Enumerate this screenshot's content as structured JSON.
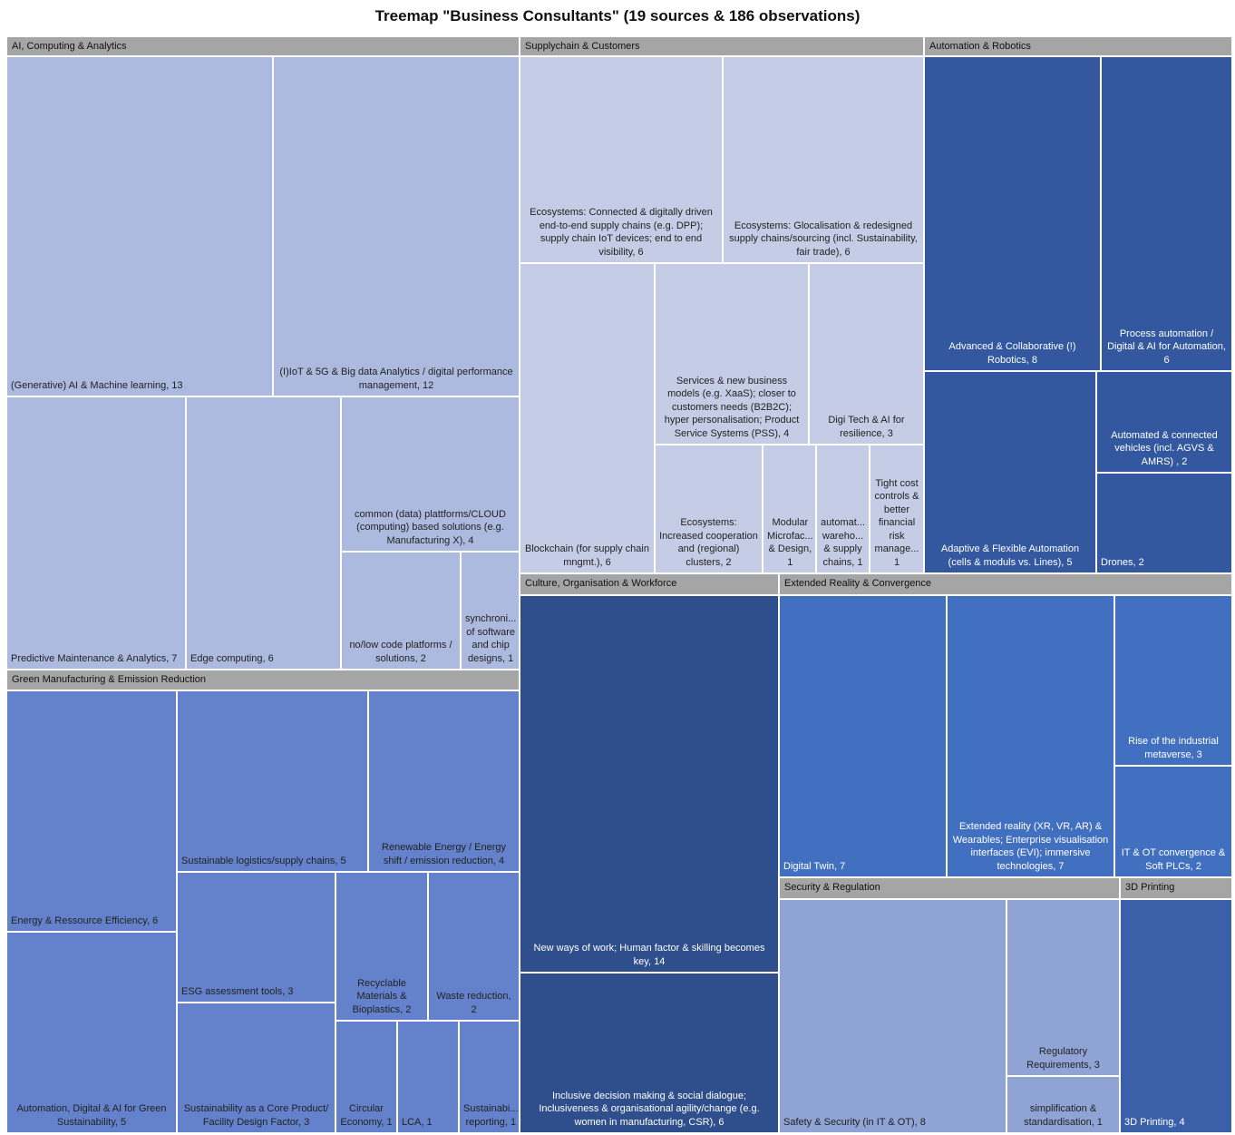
{
  "chart_data": {
    "type": "treemap",
    "title": "Treemap \"Business Consultants\" (19 sources & 186 observations)",
    "header_color": "#a5a5a5",
    "groups": [
      {
        "name": "AI, Computing & Analytics",
        "color": "#adbadf",
        "children": [
          {
            "label": "(Generative) AI & Machine learning, 13",
            "value": 13
          },
          {
            "label": "(I)IoT & 5G & Big data Analytics / digital performance management, 12",
            "value": 12
          },
          {
            "label": "Predictive Maintenance & Analytics, 7",
            "value": 7
          },
          {
            "label": "Edge computing, 6",
            "value": 6
          },
          {
            "label": "common (data) plattforms/CLOUD (computing) based solutions (e.g. Manufacturing X), 4",
            "value": 4
          },
          {
            "label": "no/low code platforms / solutions, 2",
            "value": 2
          },
          {
            "label": "synchroni... of software and chip designs, 1",
            "value": 1
          }
        ]
      },
      {
        "name": "Green Manufacturing & Emission Reduction",
        "color": "#6382cb",
        "children": [
          {
            "label": "Energy & Ressource Efficiency, 6",
            "value": 6
          },
          {
            "label": "Automation, Digital & AI for Green Sustainability, 5",
            "value": 5
          },
          {
            "label": "Sustainable logistics/supply chains, 5",
            "value": 5
          },
          {
            "label": "Renewable Energy / Energy shift / emission reduction, 4",
            "value": 4
          },
          {
            "label": "ESG assessment tools, 3",
            "value": 3
          },
          {
            "label": "Sustainability as a Core Product/ Facility Design Factor, 3",
            "value": 3
          },
          {
            "label": "Recyclable Materials & Bioplastics, 2",
            "value": 2
          },
          {
            "label": "Waste reduction, 2",
            "value": 2
          },
          {
            "label": "Circular Economy, 1",
            "value": 1
          },
          {
            "label": "LCA, 1",
            "value": 1
          },
          {
            "label": "Sustainabi... reporting, 1",
            "value": 1
          }
        ]
      },
      {
        "name": "Supplychain & Customers",
        "color": "#c5cde6",
        "children": [
          {
            "label": "Ecosystems: Connected & digitally driven end-to-end supply chains (e.g. DPP); supply chain IoT devices; end to end visibility, 6",
            "value": 6
          },
          {
            "label": "Ecosystems: Glocalisation & redesigned supply chains/sourcing (incl. Sustainability, fair trade), 6",
            "value": 6
          },
          {
            "label": "Blockchain (for supply chain mngmt.), 6",
            "value": 6
          },
          {
            "label": "Services & new business models (e.g. XaaS); closer to customers needs (B2B2C); hyper personalisation; Product Service Systems (PSS), 4",
            "value": 4
          },
          {
            "label": "Digi Tech & AI for resilience, 3",
            "value": 3
          },
          {
            "label": "Ecosystems: Increased cooperation and (regional) clusters, 2",
            "value": 2
          },
          {
            "label": "Modular Microfac... & Design, 1",
            "value": 1
          },
          {
            "label": "automat... wareho... & supply chains, 1",
            "value": 1
          },
          {
            "label": "Tight cost controls & better financial risk manage... 1",
            "value": 1
          }
        ]
      },
      {
        "name": "Automation & Robotics",
        "color": "#3358a0",
        "children": [
          {
            "label": "Advanced & Collaborative (!) Robotics, 8",
            "value": 8
          },
          {
            "label": "Process automation / Digital & AI for Automation, 6",
            "value": 6
          },
          {
            "label": "Adaptive & Flexible Automation (cells & moduls vs. Lines), 5",
            "value": 5
          },
          {
            "label": "Automated & connected vehicles (incl. AGVS & AMRS) , 2",
            "value": 2
          },
          {
            "label": "Drones, 2",
            "value": 2
          }
        ]
      },
      {
        "name": "Culture, Organisation & Workforce",
        "color": "#2f4e8c",
        "children": [
          {
            "label": "New ways of work; Human factor & skilling becomes key, 14",
            "value": 14
          },
          {
            "label": "Inclusive decision making & social dialogue; Inclusiveness & organisational agility/change (e.g. women in manufacturing, CSR), 6",
            "value": 6
          }
        ]
      },
      {
        "name": "Extended Reality & Convergence",
        "color": "#4270c1",
        "children": [
          {
            "label": "Digital Twin, 7",
            "value": 7
          },
          {
            "label": "Extended reality (XR, VR, AR) & Wearables; Enterprise visualisation interfaces (EVI); immersive technologies, 7",
            "value": 7
          },
          {
            "label": "Rise of the industrial metaverse, 3",
            "value": 3
          },
          {
            "label": "IT & OT convergence & Soft PLCs, 2",
            "value": 2
          }
        ]
      },
      {
        "name": "Security & Regulation",
        "color": "#8fa3d4",
        "children": [
          {
            "label": "Safety & Security (in IT & OT), 8",
            "value": 8
          },
          {
            "label": "Regulatory Requirements, 3",
            "value": 3
          },
          {
            "label": "simplification & standardisation, 1",
            "value": 1
          }
        ]
      },
      {
        "name": "3D Printing",
        "color": "#3b60aa",
        "children": [
          {
            "label": "3D Printing, 4",
            "value": 4
          }
        ]
      }
    ]
  }
}
